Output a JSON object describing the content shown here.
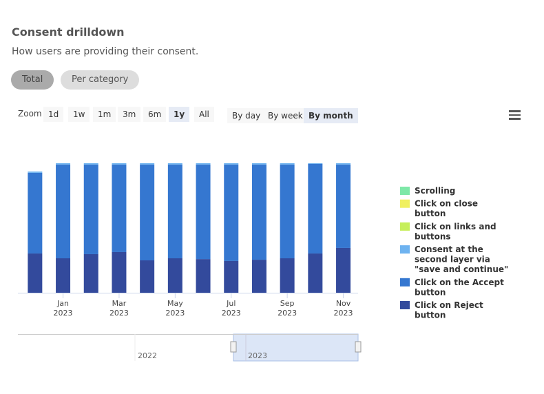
{
  "header": {
    "title": "Consent drilldown",
    "subtitle": "How users are providing their consent."
  },
  "tabs": [
    "Total",
    "Per category"
  ],
  "zoom": {
    "label": "Zoom",
    "options": [
      "1d",
      "1w",
      "1m",
      "3m",
      "6m",
      "1y",
      "All"
    ],
    "selected": 5
  },
  "period": {
    "options": [
      "By day",
      "By week",
      "By month"
    ],
    "selected": 2
  },
  "navigator": {
    "labels": [
      "2022",
      "2023"
    ]
  },
  "chart_data": {
    "type": "stacked-bar",
    "categories": [
      null,
      "Jan 2023",
      null,
      "Mar 2023",
      null,
      "May 2023",
      null,
      "Jul 2023",
      null,
      "Sep 2023",
      null,
      "Nov 2023"
    ],
    "ylim": [
      0,
      100
    ],
    "legend": "right",
    "series": [
      {
        "name": "Click on Reject button",
        "color": "#334a9c",
        "values": [
          30.3,
          26.6,
          29.8,
          31.4,
          25,
          26.6,
          26,
          24.5,
          25.5,
          26.6,
          30.3,
          34.6
        ]
      },
      {
        "name": "Click on the Accept button",
        "color": "#3577d0",
        "values": [
          62.3,
          72.4,
          69.2,
          67.6,
          74,
          72.4,
          73,
          74.5,
          73.5,
          72.4,
          69.2,
          64.4
        ]
      },
      {
        "name": "Consent at the second layer via \"save and continue\"",
        "color": "#6eb3f0",
        "values": [
          1,
          1,
          1,
          1,
          1,
          1,
          1,
          1,
          1,
          1,
          0.5,
          1
        ]
      },
      {
        "name": "Click on links and buttons",
        "color": "#c6ef5a",
        "values": [
          0,
          0,
          0,
          0,
          0,
          0,
          0,
          0,
          0,
          0,
          0,
          0
        ]
      },
      {
        "name": "Click on close button",
        "color": "#f0f05f",
        "values": [
          0,
          0,
          0,
          0,
          0,
          0,
          0,
          0,
          0,
          0,
          0,
          0
        ]
      },
      {
        "name": "Scrolling",
        "color": "#7ee8a8",
        "values": [
          0,
          0,
          0,
          0,
          0,
          0,
          0,
          0,
          0,
          0,
          0,
          0
        ]
      }
    ]
  }
}
